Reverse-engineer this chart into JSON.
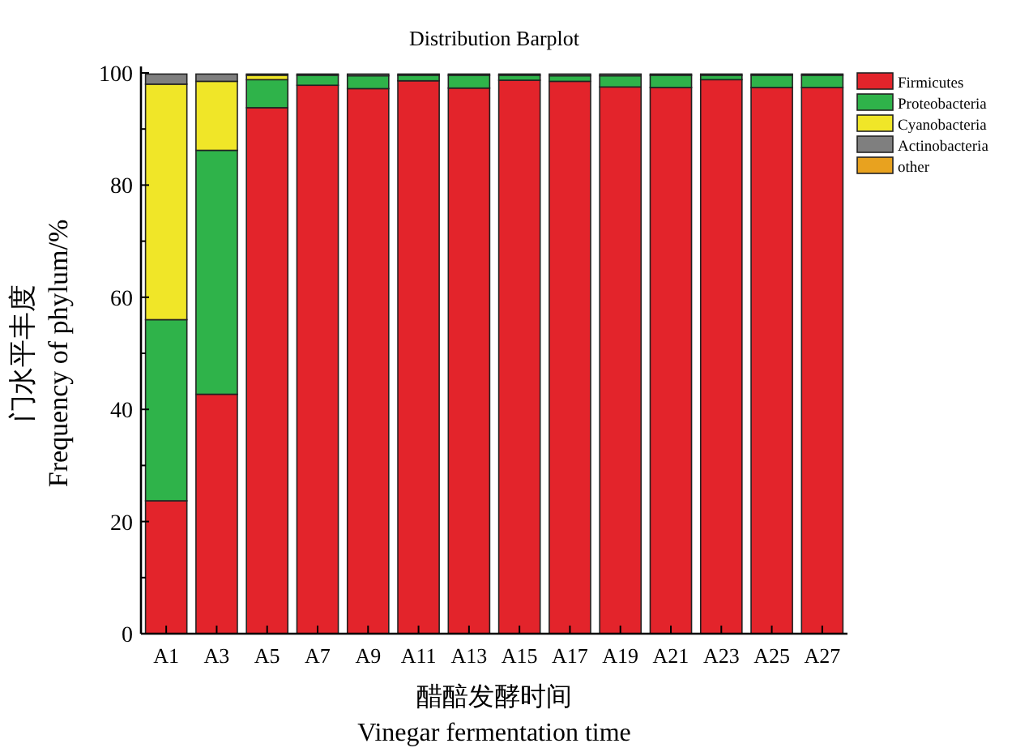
{
  "chart_data": {
    "type": "bar",
    "title": "Distribution Barplot",
    "xlabel": "醋醅发酵时间\nVinegar fermentation time",
    "ylabel": "门水平丰度\nFrequency of phylum/%",
    "categories": [
      "A1",
      "A3",
      "A5",
      "A7",
      "A9",
      "A11",
      "A13",
      "A15",
      "A17",
      "A19",
      "A21",
      "A23",
      "A25",
      "A27"
    ],
    "stacked": true,
    "legend": "right",
    "ylim": [
      0,
      100
    ],
    "yticks": [
      0,
      {
        "value": 10,
        "label": null
      },
      20,
      {
        "value": 30,
        "label": null
      },
      40,
      {
        "value": 50,
        "label": null
      },
      60,
      {
        "value": 70,
        "label": null
      },
      80,
      {
        "value": 90,
        "label": null
      },
      100
    ],
    "series": [
      {
        "name": "Firmicutes",
        "color": "#e3242b",
        "values": [
          23.7,
          42.7,
          93.8,
          97.8,
          97.2,
          98.6,
          97.3,
          98.7,
          98.5,
          97.5,
          97.4,
          98.8,
          97.4,
          97.4
        ]
      },
      {
        "name": "Proteobacteria",
        "color": "#2fb34a",
        "values": [
          32.3,
          43.5,
          5.0,
          1.8,
          2.3,
          1.0,
          2.3,
          0.9,
          1.0,
          2.0,
          2.2,
          0.8,
          2.2,
          2.2
        ]
      },
      {
        "name": "Cyanobacteria",
        "color": "#f0e628",
        "values": [
          42.0,
          12.3,
          0.8,
          0,
          0,
          0,
          0,
          0,
          0,
          0,
          0,
          0,
          0,
          0
        ]
      },
      {
        "name": "Actinobacteria",
        "color": "#7f7f7f",
        "values": [
          1.8,
          1.3,
          0.2,
          0.2,
          0.3,
          0.2,
          0.2,
          0.2,
          0.3,
          0.3,
          0.2,
          0.2,
          0.2,
          0.2
        ]
      },
      {
        "name": "other",
        "color": "#e8a21f",
        "values": [
          0,
          0,
          0,
          0,
          0,
          0,
          0,
          0,
          0,
          0,
          0,
          0,
          0,
          0
        ]
      }
    ]
  }
}
